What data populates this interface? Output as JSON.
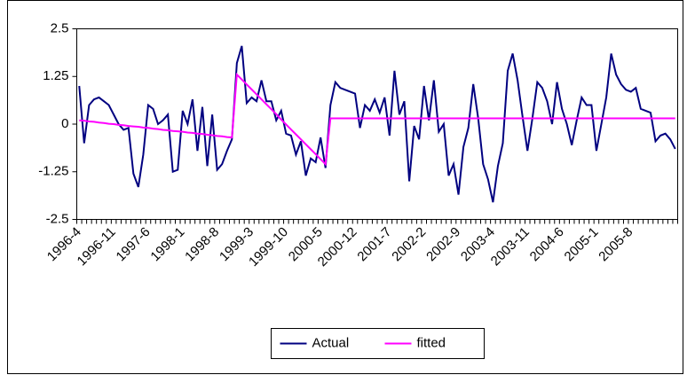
{
  "chart_data": {
    "type": "line",
    "categories": [
      "1996-4",
      null,
      null,
      null,
      null,
      null,
      null,
      "1996-11",
      null,
      null,
      null,
      null,
      null,
      null,
      "1997-6",
      null,
      null,
      null,
      null,
      null,
      null,
      "1998-1",
      null,
      null,
      null,
      null,
      null,
      null,
      "1998-8",
      null,
      null,
      null,
      null,
      null,
      null,
      "1999-3",
      null,
      null,
      null,
      null,
      null,
      null,
      "1999-10",
      null,
      null,
      null,
      null,
      null,
      null,
      "2000-5",
      null,
      null,
      null,
      null,
      null,
      null,
      "2000-12",
      null,
      null,
      null,
      null,
      null,
      null,
      "2001-7",
      null,
      null,
      null,
      null,
      null,
      null,
      "2002-2",
      null,
      null,
      null,
      null,
      null,
      null,
      "2002-9",
      null,
      null,
      null,
      null,
      null,
      null,
      "2003-4",
      null,
      null,
      null,
      null,
      null,
      null,
      "2003-11",
      null,
      null,
      null,
      null,
      null,
      null,
      "2004-6",
      null,
      null,
      null,
      null,
      null,
      null,
      "2005-1",
      null,
      null,
      null,
      null,
      null,
      null,
      "2005-8",
      null,
      null,
      null,
      null,
      null,
      null,
      null,
      null,
      null
    ],
    "series": [
      {
        "name": "Actual",
        "color": "#000080",
        "values": [
          1.0,
          -0.5,
          0.5,
          0.65,
          0.7,
          0.6,
          0.5,
          0.25,
          0.0,
          -0.15,
          -0.1,
          -1.3,
          -1.65,
          -0.8,
          0.5,
          0.4,
          0.0,
          0.1,
          0.25,
          -1.25,
          -1.2,
          0.35,
          0.0,
          0.65,
          -0.7,
          0.45,
          -1.1,
          0.25,
          -1.2,
          -1.05,
          -0.7,
          -0.4,
          1.6,
          2.05,
          0.55,
          0.7,
          0.6,
          1.15,
          0.6,
          0.6,
          0.1,
          0.35,
          -0.25,
          -0.3,
          -0.8,
          -0.45,
          -1.35,
          -0.9,
          -1.0,
          -0.35,
          -1.15,
          0.5,
          1.1,
          0.95,
          0.9,
          0.85,
          0.8,
          -0.1,
          0.5,
          0.35,
          0.65,
          0.3,
          0.7,
          -0.3,
          1.4,
          0.25,
          0.6,
          -1.5,
          -0.05,
          -0.4,
          1.0,
          0.1,
          1.15,
          -0.2,
          0.0,
          -1.35,
          -1.05,
          -1.85,
          -0.6,
          -0.1,
          1.05,
          0.15,
          -1.05,
          -1.45,
          -2.05,
          -1.1,
          -0.5,
          1.4,
          1.85,
          1.15,
          0.2,
          -0.7,
          0.15,
          1.1,
          0.95,
          0.6,
          0.0,
          1.1,
          0.4,
          0.0,
          -0.55,
          0.1,
          0.7,
          0.5,
          0.5,
          -0.7,
          0.0,
          0.7,
          1.85,
          1.3,
          1.05,
          0.9,
          0.85,
          0.95,
          0.4,
          0.35,
          0.3,
          -0.45,
          -0.3,
          -0.25,
          -0.4,
          -0.65
        ]
      },
      {
        "name": "fitted",
        "color": "#FF00FF",
        "values": [
          0.1,
          0.09,
          0.07,
          0.06,
          0.04,
          0.03,
          0.01,
          0.0,
          -0.02,
          -0.03,
          -0.05,
          -0.06,
          -0.07,
          -0.09,
          -0.1,
          -0.12,
          -0.13,
          -0.15,
          -0.16,
          -0.18,
          -0.19,
          -0.2,
          -0.22,
          -0.23,
          -0.25,
          -0.26,
          -0.28,
          -0.29,
          -0.31,
          -0.32,
          -0.34,
          -0.35,
          1.3,
          1.17,
          1.04,
          0.91,
          0.78,
          0.65,
          0.52,
          0.39,
          0.26,
          0.12,
          -0.01,
          -0.14,
          -0.27,
          -0.4,
          -0.53,
          -0.66,
          -0.79,
          -0.92,
          -1.05,
          0.15,
          0.15,
          0.15,
          0.15,
          0.15,
          0.15,
          0.15,
          0.15,
          0.15,
          0.15,
          0.15,
          0.15,
          0.15,
          0.15,
          0.15,
          0.15,
          0.15,
          0.15,
          0.15,
          0.15,
          0.15,
          0.15,
          0.15,
          0.15,
          0.15,
          0.15,
          0.15,
          0.15,
          0.15,
          0.15,
          0.15,
          0.15,
          0.15,
          0.15,
          0.15,
          0.15,
          0.15,
          0.15,
          0.15,
          0.15,
          0.15,
          0.15,
          0.15,
          0.15,
          0.15,
          0.15,
          0.15,
          0.15,
          0.15,
          0.15,
          0.15,
          0.15,
          0.15,
          0.15,
          0.15,
          0.15,
          0.15,
          0.15,
          0.15,
          0.15,
          0.15,
          0.15,
          0.15,
          0.15,
          0.15,
          0.15,
          0.15,
          0.15,
          0.15,
          0.15,
          0.15
        ]
      }
    ],
    "ylim": [
      -2.5,
      2.5
    ],
    "yticks": [
      2.5,
      1.25,
      0,
      -1.25,
      -2.5
    ],
    "legend": "bottom"
  }
}
